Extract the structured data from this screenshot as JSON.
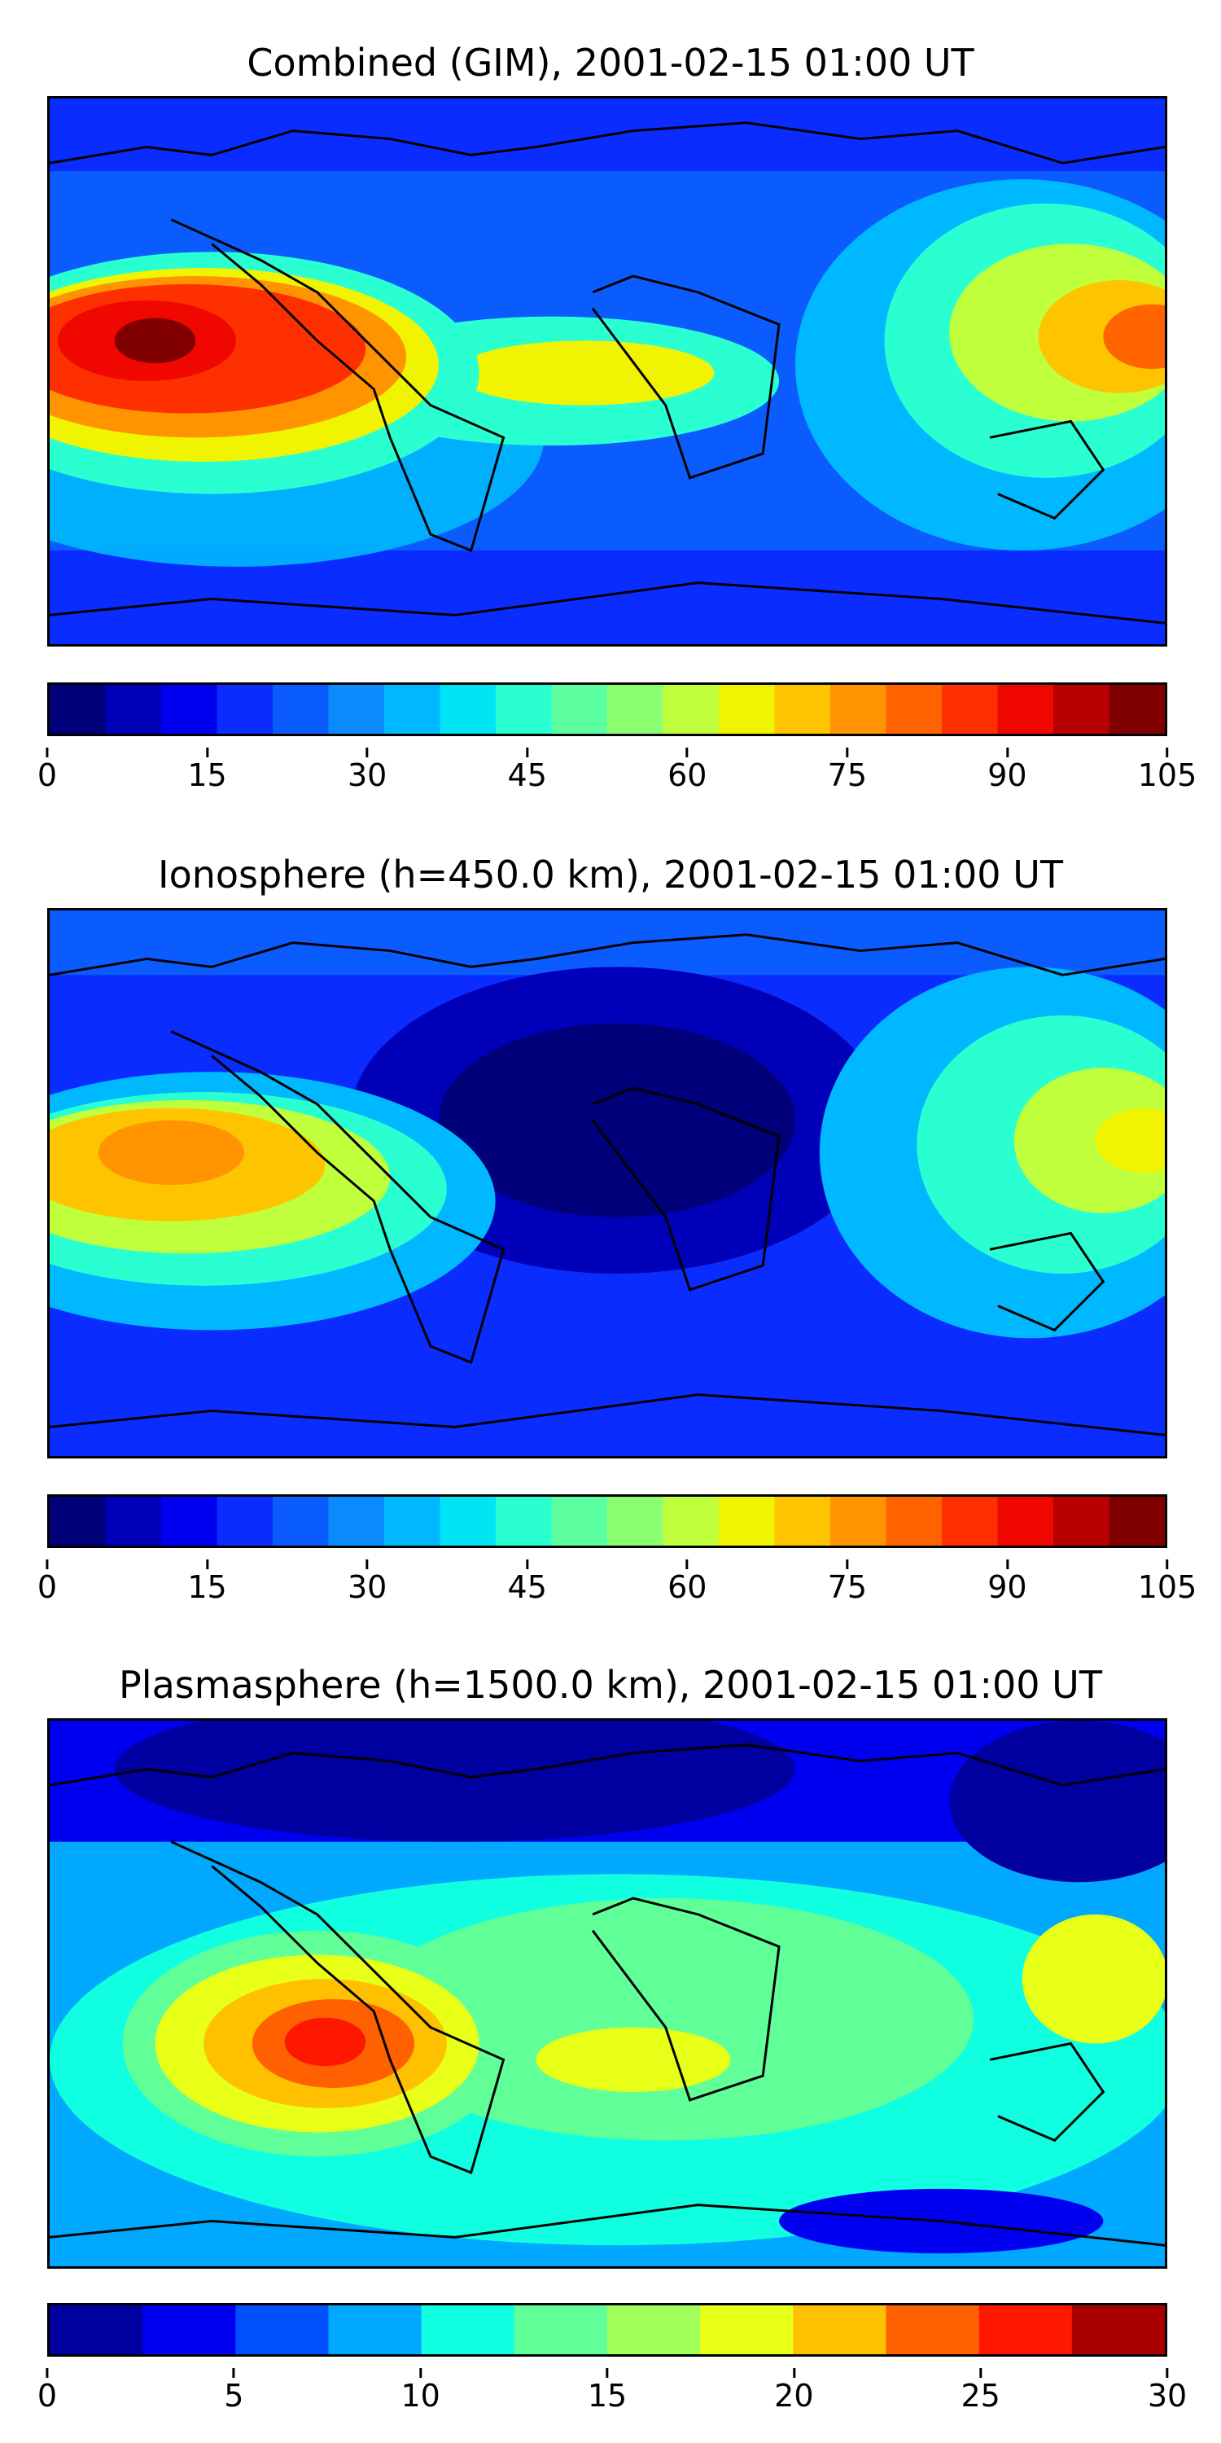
{
  "panels": [
    {
      "title": "Combined (GIM), 2001-02-15 01:00 UT",
      "colorbar": {
        "min": 0,
        "max": 105,
        "colors": [
          "#00007a",
          "#0000b8",
          "#0000f0",
          "#0a2cff",
          "#0a5cff",
          "#0a8cff",
          "#00b8ff",
          "#00e4f4",
          "#2affd2",
          "#5cffa0",
          "#8cff70",
          "#c0ff3c",
          "#f0f400",
          "#ffc400",
          "#ff9400",
          "#ff6400",
          "#ff3000",
          "#f00800",
          "#b80000",
          "#800000"
        ],
        "ticks": [
          "0",
          "15",
          "30",
          "45",
          "60",
          "75",
          "90",
          "105"
        ]
      }
    },
    {
      "title": "Ionosphere  (h=450.0 km), 2001-02-15 01:00 UT",
      "colorbar": {
        "min": 0,
        "max": 105,
        "colors": [
          "#00007a",
          "#0000b8",
          "#0000f0",
          "#0a2cff",
          "#0a5cff",
          "#0a8cff",
          "#00b8ff",
          "#00e4f4",
          "#2affd2",
          "#5cffa0",
          "#8cff70",
          "#c0ff3c",
          "#f0f400",
          "#ffc400",
          "#ff9400",
          "#ff6400",
          "#ff3000",
          "#f00800",
          "#b80000",
          "#800000"
        ],
        "ticks": [
          "0",
          "15",
          "30",
          "45",
          "60",
          "75",
          "90",
          "105"
        ]
      }
    },
    {
      "title": "Plasmasphere (h=1500.0 km), 2001-02-15 01:00 UT",
      "colorbar": {
        "min": 0,
        "max": 30,
        "colors": [
          "#0000a0",
          "#0000f0",
          "#0050ff",
          "#00a8ff",
          "#10ffe0",
          "#60ff98",
          "#a0ff58",
          "#e8ff18",
          "#ffc000",
          "#ff6000",
          "#ff1800",
          "#a80000"
        ],
        "ticks": [
          "0",
          "5",
          "10",
          "15",
          "20",
          "25",
          "30"
        ]
      }
    }
  ],
  "map_colors": {
    "coastline": "#000000",
    "low": "#0000c8",
    "mid": "#10ffe0",
    "high": "#ff3000",
    "peak": "#a00000"
  }
}
